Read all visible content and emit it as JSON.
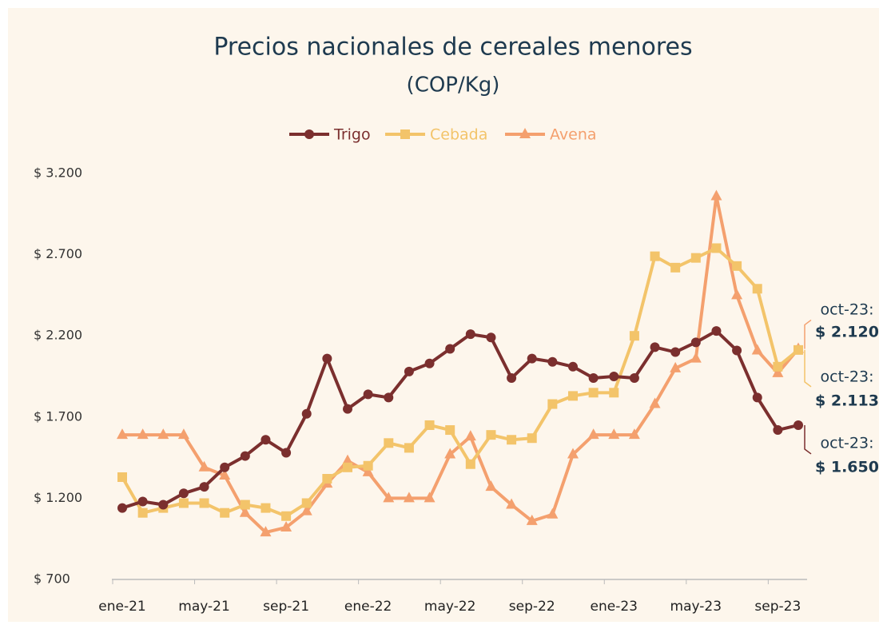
{
  "chart_data": {
    "type": "line",
    "title": "Precios nacionales de cereales menores",
    "subtitle": "(COP/Kg)",
    "categories": [
      "ene-21",
      null,
      null,
      null,
      "may-21",
      null,
      null,
      null,
      "sep-21",
      null,
      null,
      null,
      "ene-22",
      null,
      null,
      null,
      "may-22",
      null,
      null,
      null,
      "sep-22",
      null,
      null,
      null,
      "ene-23",
      null,
      null,
      null,
      "may-23",
      null,
      null,
      null,
      "sep-23",
      null
    ],
    "series": [
      {
        "name": "Trigo",
        "color": "#7b2f2e",
        "marker": "circle",
        "end_label": [
          "oct-23:",
          "$ 1.650"
        ],
        "values": [
          1140,
          1180,
          1160,
          1230,
          1270,
          1390,
          1460,
          1560,
          1480,
          1720,
          2060,
          1750,
          1840,
          1820,
          1980,
          2030,
          2120,
          2210,
          2190,
          1940,
          2060,
          2040,
          2010,
          1940,
          1950,
          1940,
          2130,
          2100,
          2160,
          2230,
          2110,
          1820,
          1620,
          1650
        ]
      },
      {
        "name": "Cebada",
        "color": "#f3c46a",
        "marker": "square",
        "end_label": [
          "oct-23:",
          "$ 2.113"
        ],
        "values": [
          1330,
          1110,
          1140,
          1170,
          1170,
          1110,
          1160,
          1140,
          1090,
          1170,
          1320,
          1390,
          1400,
          1540,
          1510,
          1650,
          1620,
          1410,
          1590,
          1560,
          1570,
          1780,
          1830,
          1850,
          1850,
          2200,
          2690,
          2620,
          2680,
          2740,
          2630,
          2490,
          2010,
          2113
        ]
      },
      {
        "name": "Avena",
        "color": "#f4a06e",
        "marker": "triangle",
        "end_label": [
          "oct-23:",
          "$ 2.120"
        ],
        "values": [
          1590,
          1590,
          1590,
          1590,
          1390,
          1340,
          1110,
          990,
          1020,
          1120,
          1290,
          1430,
          1360,
          1200,
          1200,
          1200,
          1470,
          1580,
          1270,
          1160,
          1060,
          1100,
          1470,
          1590,
          1590,
          1590,
          1780,
          2000,
          2060,
          3060,
          2450,
          2110,
          1970,
          2120
        ]
      }
    ],
    "ylim": [
      700,
      3200
    ],
    "yticks": [
      {
        "value": 700,
        "label": "$ 700"
      },
      {
        "value": 1200,
        "label": "$ 1.200"
      },
      {
        "value": 1700,
        "label": "$ 1.700"
      },
      {
        "value": 2200,
        "label": "$ 2.200"
      },
      {
        "value": 2700,
        "label": "$ 2.700"
      },
      {
        "value": 3200,
        "label": "$ 3.200"
      }
    ],
    "grid": false,
    "legend": "top"
  }
}
